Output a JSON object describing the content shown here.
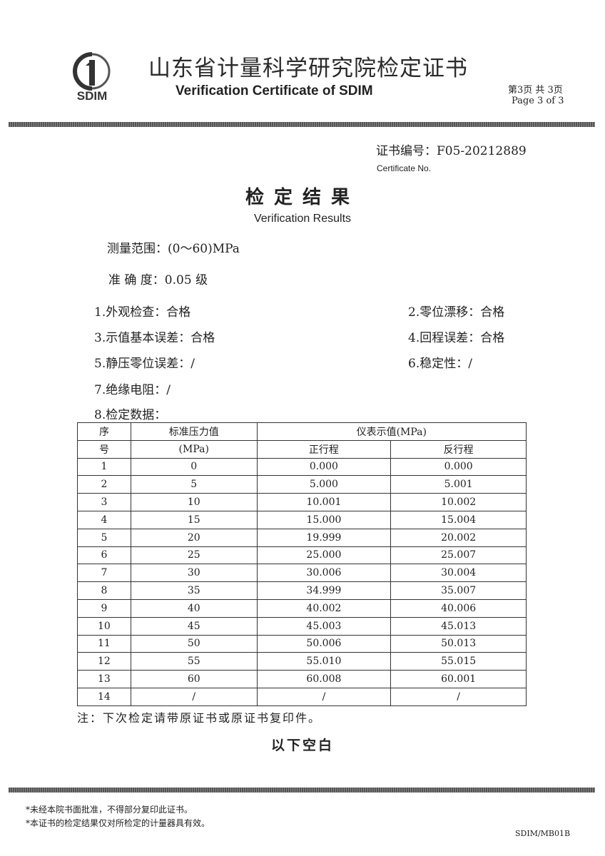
{
  "header": {
    "logo_text": "SDIM",
    "title_cn": "山东省计量科学研究院检定证书",
    "title_en": "Verification Certificate of SDIM",
    "page_cn": "第3页 共 3页",
    "page_en": "Page 3   of 3"
  },
  "certificate": {
    "number_label": "证书编号：F05-20212889",
    "number_label_en": "Certificate No."
  },
  "results": {
    "heading": "检定结果",
    "heading_en": "Verification Results",
    "range": "测量范围：(0～60)MPa",
    "accuracy": "准 确 度：0.05 级",
    "items": [
      "1.外观检查：合格",
      "2.零位漂移：合格",
      "3.示值基本误差：合格",
      "4.回程误差：合格",
      "5.静压零位误差：/",
      "6.稳定性：/",
      "7.绝缘电阻：/",
      "8.检定数据："
    ]
  },
  "table": {
    "h_seq_1": "序",
    "h_seq_2": "号",
    "h_std_1": "标准压力值",
    "h_std_2": "(MPa)",
    "h_ind": "仪表示值(MPa)",
    "h_up": "正行程",
    "h_down": "反行程",
    "rows": [
      [
        "1",
        "0",
        "0.000",
        "0.000"
      ],
      [
        "2",
        "5",
        "5.000",
        "5.001"
      ],
      [
        "3",
        "10",
        "10.001",
        "10.002"
      ],
      [
        "4",
        "15",
        "15.000",
        "15.004"
      ],
      [
        "5",
        "20",
        "19.999",
        "20.002"
      ],
      [
        "6",
        "25",
        "25.000",
        "25.007"
      ],
      [
        "7",
        "30",
        "30.006",
        "30.004"
      ],
      [
        "8",
        "35",
        "34.999",
        "35.007"
      ],
      [
        "9",
        "40",
        "40.002",
        "40.006"
      ],
      [
        "10",
        "45",
        "45.003",
        "45.013"
      ],
      [
        "11",
        "50",
        "50.006",
        "50.013"
      ],
      [
        "12",
        "55",
        "55.010",
        "55.015"
      ],
      [
        "13",
        "60",
        "60.008",
        "60.001"
      ],
      [
        "14",
        "/",
        "/",
        "/"
      ]
    ]
  },
  "note": "注：下次检定请带原证书或原证书复印件。",
  "blank_below": "以下空白",
  "footer": {
    "line1": "*未经本院书面批准，不得部分复印此证书。",
    "line2": "*本证书的检定结果仅对所检定的计量器具有效。",
    "form_code": "SDIM/MB01B"
  }
}
